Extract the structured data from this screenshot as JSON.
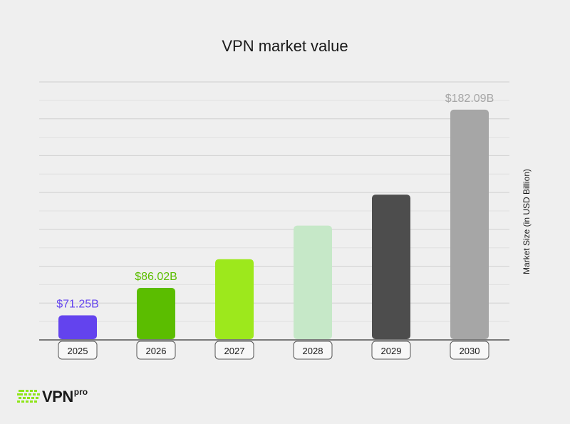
{
  "chart_data": {
    "type": "bar",
    "title": "VPN market value",
    "xlabel": "",
    "ylabel": "Market Size (in USD Billion)",
    "categories": [
      "2025",
      "2026",
      "2027",
      "2028",
      "2029",
      "2030"
    ],
    "values": [
      71.25,
      86.02,
      101.5,
      119.6,
      136.3,
      182.09
    ],
    "data_labels": [
      "$71.25B",
      "$86.02B",
      "",
      "",
      "",
      "$182.09B"
    ],
    "colors": [
      "#6343ee",
      "#5bbd00",
      "#9de81c",
      "#c6e8c8",
      "#4d4d4d",
      "#a6a6a6"
    ],
    "label_colors": [
      "#6343ee",
      "#5bbd00",
      "#9de81c",
      "#c6e8c8",
      "#4d4d4d",
      "#a6a6a6"
    ],
    "ylim": [
      58,
      197
    ],
    "grid": true,
    "legend": "none"
  },
  "brand": {
    "logo_text": "VPN",
    "logo_sup": "pro",
    "accent": "#8ee51a"
  }
}
